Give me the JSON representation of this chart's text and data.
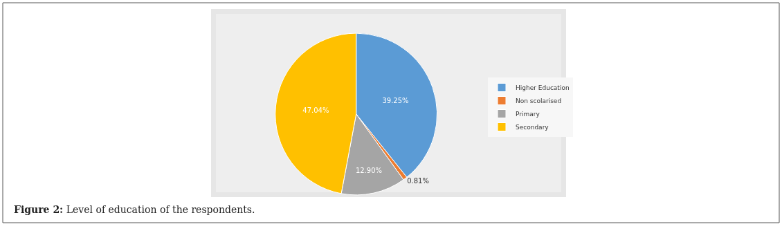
{
  "chart_data": {
    "type": "pie",
    "categories": [
      "Higher Education",
      "Non scolarised",
      "Primary",
      "Secondary"
    ],
    "values": [
      39.25,
      0.81,
      12.9,
      47.04
    ],
    "value_labels": [
      "39.25%",
      "0.81%",
      "12.90%",
      "47.04%"
    ],
    "colors": [
      "#5b9bd5",
      "#ed7d31",
      "#a5a5a5",
      "#ffc000"
    ],
    "legend": "right",
    "annotations": [
      "Figure 2: Level of education of the respondents."
    ]
  }
}
